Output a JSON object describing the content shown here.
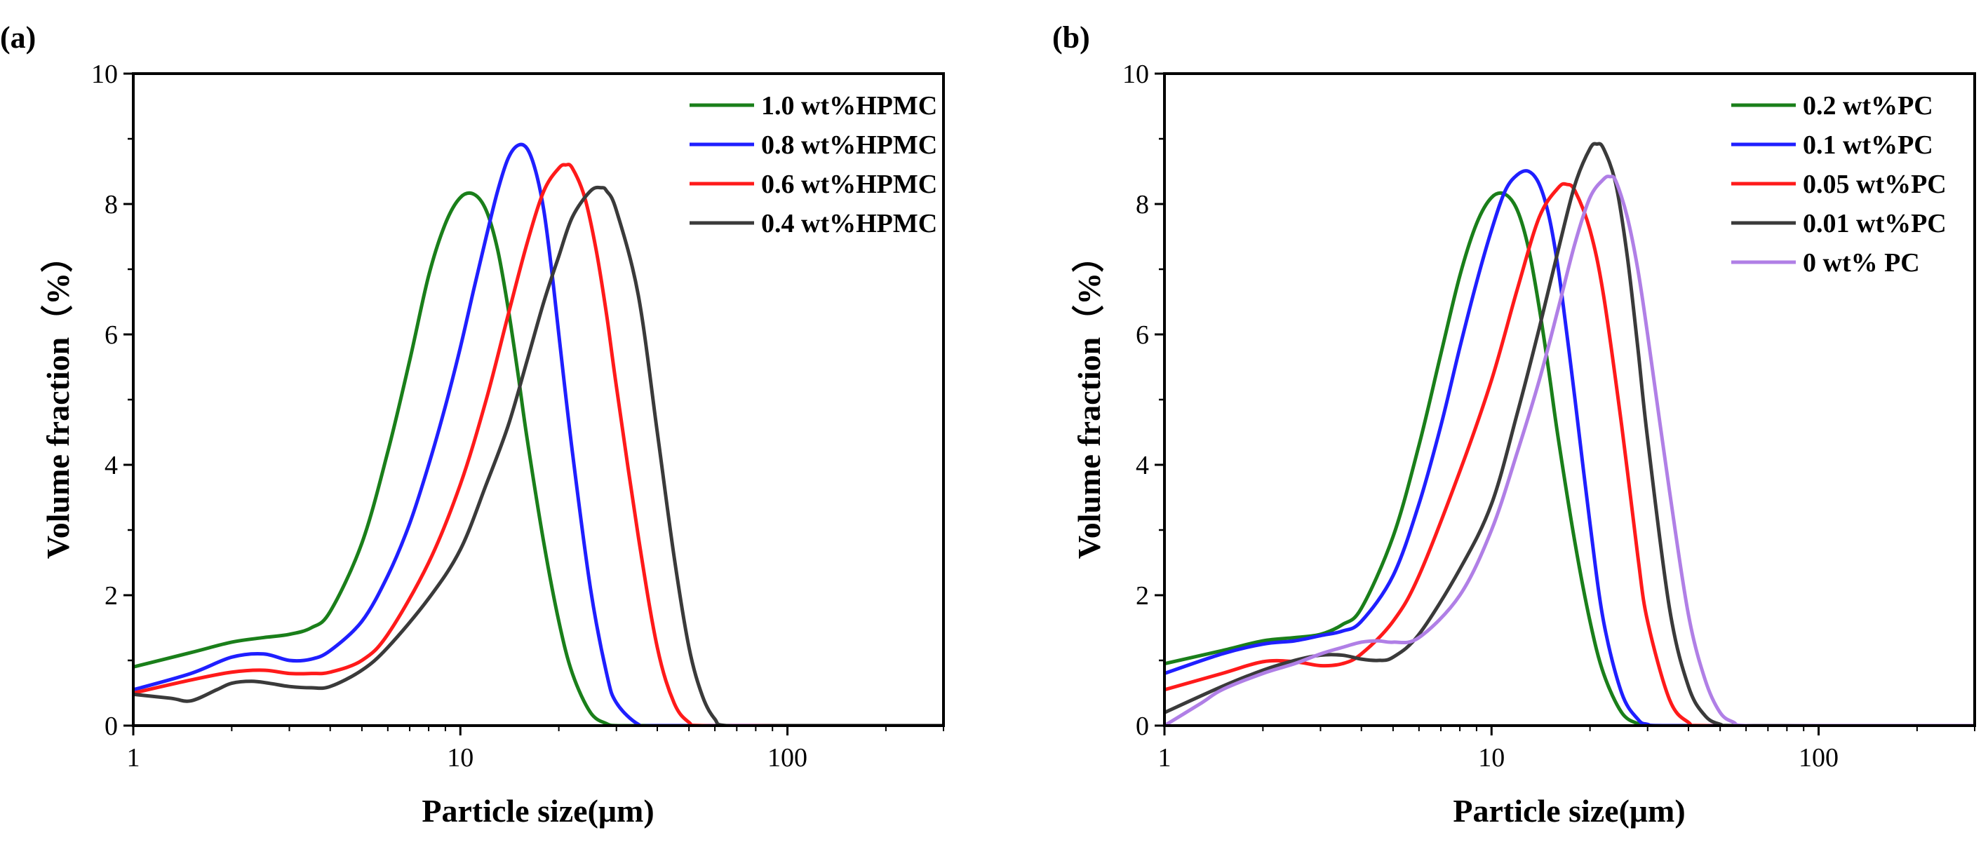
{
  "chart_data": [
    {
      "type": "line",
      "panel_label": "(a)",
      "xlabel": "Particle size(μm)",
      "ylabel": "Volume fraction（%）",
      "xscale": "log",
      "xlim": [
        1,
        300
      ],
      "ylim": [
        0,
        10
      ],
      "xticks": [
        1,
        10,
        100
      ],
      "xtick_labels": [
        "1",
        "10",
        "100"
      ],
      "yticks": [
        0,
        2,
        4,
        6,
        8,
        10
      ],
      "ytick_labels": [
        "0",
        "2",
        "4",
        "6",
        "8",
        "10"
      ],
      "legend_position": "top-right",
      "series": [
        {
          "name": "1.0 wt%HPMC",
          "color": "#1a7f1a",
          "x": [
            1,
            1.5,
            2,
            2.5,
            3,
            3.5,
            4,
            5,
            6,
            7,
            8,
            9,
            10,
            11,
            12,
            13,
            14,
            15,
            16,
            18,
            20,
            22,
            25,
            28,
            30,
            35,
            40,
            100,
            300
          ],
          "y": [
            0.9,
            1.12,
            1.28,
            1.35,
            1.4,
            1.5,
            1.75,
            2.8,
            4.2,
            5.6,
            6.9,
            7.7,
            8.1,
            8.15,
            7.9,
            7.3,
            6.4,
            5.4,
            4.4,
            2.8,
            1.6,
            0.8,
            0.2,
            0.03,
            0,
            0,
            0,
            0,
            0
          ]
        },
        {
          "name": "0.8 wt%HPMC",
          "color": "#1f1fff",
          "x": [
            1,
            1.5,
            2,
            2.5,
            3,
            3.5,
            4,
            5,
            6,
            7,
            8,
            9,
            10,
            11,
            12,
            13,
            14,
            15,
            16,
            17,
            18,
            19,
            20,
            22,
            25,
            28,
            30,
            35,
            40,
            100,
            300
          ],
          "y": [
            0.55,
            0.8,
            1.05,
            1.1,
            1.0,
            1.02,
            1.15,
            1.6,
            2.3,
            3.1,
            4.0,
            4.9,
            5.8,
            6.7,
            7.5,
            8.2,
            8.7,
            8.9,
            8.85,
            8.5,
            7.9,
            7.0,
            6.0,
            4.2,
            2.1,
            0.8,
            0.35,
            0.02,
            0,
            0,
            0
          ]
        },
        {
          "name": "0.6 wt%HPMC",
          "color": "#ff1a1a",
          "x": [
            1,
            1.5,
            2,
            2.5,
            3,
            3.5,
            4,
            5,
            6,
            8,
            10,
            12,
            14,
            16,
            18,
            20,
            21,
            22,
            24,
            26,
            28,
            30,
            35,
            40,
            45,
            50,
            55,
            100,
            300
          ],
          "y": [
            0.5,
            0.7,
            0.82,
            0.85,
            0.8,
            0.8,
            0.82,
            1.0,
            1.4,
            2.5,
            3.7,
            5.0,
            6.3,
            7.4,
            8.2,
            8.55,
            8.6,
            8.55,
            8.1,
            7.3,
            6.3,
            5.2,
            2.9,
            1.2,
            0.35,
            0.05,
            0,
            0,
            0
          ]
        },
        {
          "name": "0.4 wt%HPMC",
          "color": "#3a3a3a",
          "x": [
            1,
            1.3,
            1.5,
            1.8,
            2,
            2.3,
            2.6,
            3,
            3.5,
            4,
            5,
            6,
            8,
            10,
            12,
            14,
            16,
            18,
            20,
            22,
            25,
            27,
            28,
            30,
            35,
            40,
            45,
            50,
            55,
            60,
            65,
            100,
            300
          ],
          "y": [
            0.48,
            0.42,
            0.38,
            0.55,
            0.65,
            0.68,
            0.65,
            0.6,
            0.58,
            0.6,
            0.85,
            1.2,
            1.95,
            2.7,
            3.7,
            4.6,
            5.6,
            6.5,
            7.2,
            7.8,
            8.2,
            8.25,
            8.2,
            7.9,
            6.6,
            4.5,
            2.6,
            1.2,
            0.45,
            0.1,
            0,
            0,
            0
          ]
        }
      ]
    },
    {
      "type": "line",
      "panel_label": "(b)",
      "xlabel": "Particle size(μm)",
      "ylabel": "Volume fraction（%）",
      "xscale": "log",
      "xlim": [
        1,
        300
      ],
      "ylim": [
        0,
        10
      ],
      "xticks": [
        1,
        10,
        100
      ],
      "xtick_labels": [
        "1",
        "10",
        "100"
      ],
      "yticks": [
        0,
        2,
        4,
        6,
        8,
        10
      ],
      "ytick_labels": [
        "0",
        "2",
        "4",
        "6",
        "8",
        "10"
      ],
      "legend_position": "top-right",
      "series": [
        {
          "name": "0.2 wt%PC",
          "color": "#1a7f1a",
          "x": [
            1,
            1.5,
            2,
            2.5,
            3,
            3.5,
            4,
            5,
            6,
            7,
            8,
            9,
            10,
            11,
            12,
            13,
            14,
            15,
            16,
            18,
            20,
            22,
            25,
            28,
            30,
            35,
            100,
            300
          ],
          "y": [
            0.95,
            1.15,
            1.3,
            1.35,
            1.4,
            1.55,
            1.8,
            2.9,
            4.3,
            5.7,
            6.9,
            7.7,
            8.1,
            8.15,
            7.9,
            7.3,
            6.4,
            5.4,
            4.4,
            2.8,
            1.6,
            0.8,
            0.2,
            0.03,
            0,
            0,
            0,
            0
          ]
        },
        {
          "name": "0.1 wt%PC",
          "color": "#1f1fff",
          "x": [
            1,
            1.5,
            2,
            2.5,
            3,
            3.5,
            4,
            5,
            6,
            7,
            8,
            9,
            10,
            11,
            12,
            13,
            14,
            15,
            16,
            17,
            18,
            20,
            22,
            25,
            28,
            30,
            35,
            100,
            300
          ],
          "y": [
            0.8,
            1.1,
            1.25,
            1.3,
            1.38,
            1.45,
            1.6,
            2.3,
            3.4,
            4.6,
            5.8,
            6.8,
            7.6,
            8.2,
            8.45,
            8.5,
            8.3,
            7.8,
            7.0,
            6.0,
            5.0,
            3.1,
            1.6,
            0.5,
            0.1,
            0.02,
            0,
            0,
            0
          ]
        },
        {
          "name": "0.05 wt%PC",
          "color": "#ff1a1a",
          "x": [
            1,
            1.5,
            2,
            2.5,
            3,
            3.5,
            4,
            5,
            6,
            8,
            10,
            12,
            14,
            16,
            17,
            18,
            20,
            22,
            25,
            28,
            30,
            35,
            40,
            45,
            100,
            300
          ],
          "y": [
            0.55,
            0.8,
            0.98,
            0.98,
            0.92,
            0.95,
            1.1,
            1.6,
            2.3,
            3.9,
            5.3,
            6.7,
            7.8,
            8.25,
            8.3,
            8.2,
            7.6,
            6.6,
            4.6,
            2.6,
            1.6,
            0.4,
            0.05,
            0,
            0,
            0
          ]
        },
        {
          "name": "0.01 wt%PC",
          "color": "#3a3a3a",
          "x": [
            1,
            1.5,
            2,
            2.5,
            3,
            3.5,
            4,
            4.5,
            5,
            6,
            8,
            10,
            12,
            14,
            16,
            18,
            20,
            21,
            22,
            24,
            26,
            28,
            30,
            35,
            40,
            45,
            50,
            55,
            100,
            300
          ],
          "y": [
            0.2,
            0.6,
            0.85,
            1.0,
            1.08,
            1.08,
            1.02,
            1.0,
            1.05,
            1.4,
            2.4,
            3.4,
            4.8,
            6.1,
            7.3,
            8.3,
            8.85,
            8.92,
            8.85,
            8.3,
            7.2,
            5.8,
            4.4,
            1.8,
            0.6,
            0.15,
            0.02,
            0,
            0,
            0
          ]
        },
        {
          "name": "0 wt% PC",
          "color": "#b07fe6",
          "x": [
            1,
            1.3,
            1.5,
            2,
            2.5,
            3,
            3.5,
            4,
            4.5,
            5,
            6,
            8,
            10,
            12,
            14,
            16,
            18,
            20,
            22,
            23,
            24,
            26,
            28,
            30,
            35,
            40,
            45,
            50,
            55,
            60,
            100,
            300
          ],
          "y": [
            0.0,
            0.35,
            0.55,
            0.8,
            0.95,
            1.1,
            1.2,
            1.28,
            1.3,
            1.28,
            1.35,
            2.0,
            3.0,
            4.2,
            5.3,
            6.4,
            7.4,
            8.1,
            8.38,
            8.42,
            8.35,
            7.8,
            7.0,
            6.0,
            3.6,
            1.7,
            0.7,
            0.2,
            0.05,
            0,
            0,
            0
          ]
        }
      ]
    }
  ]
}
